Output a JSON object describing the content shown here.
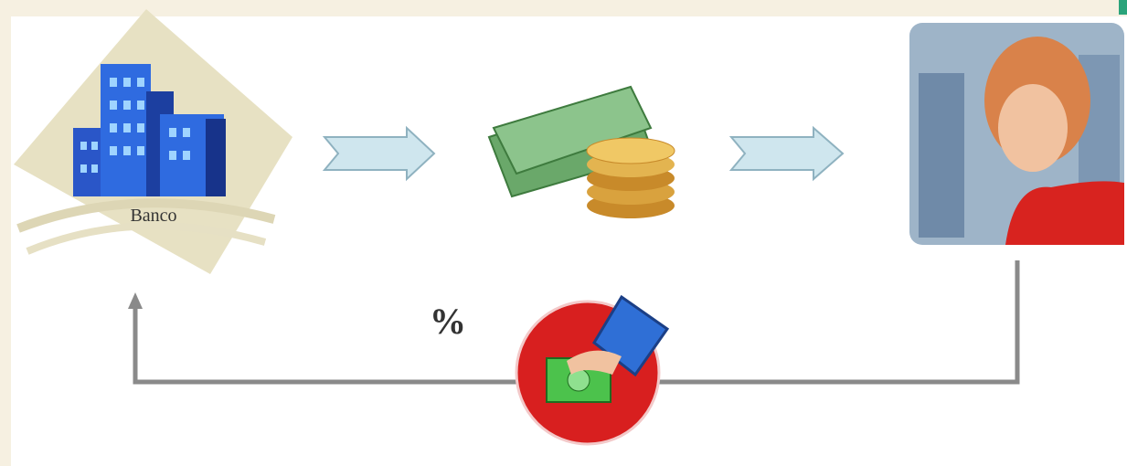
{
  "nodes": [
    {
      "label": "Banco"
    }
  ],
  "annotation": "%"
}
